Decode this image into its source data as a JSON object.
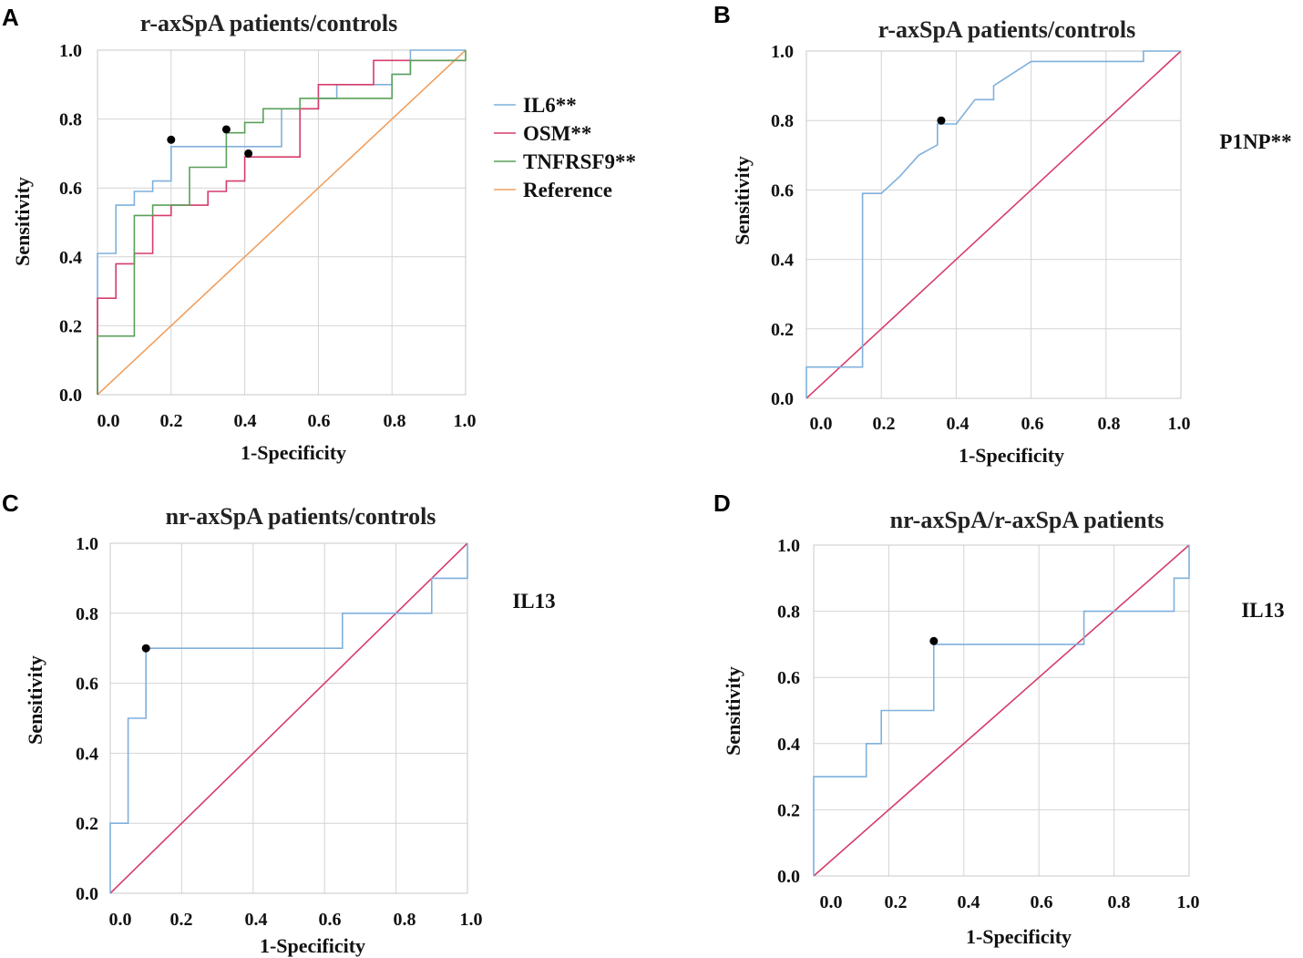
{
  "chart_data": [
    {
      "type": "line",
      "panel": "A",
      "title": "r-axSpA patients/controls",
      "xlabel": "1-Specificity",
      "ylabel": "Sensitivity",
      "xlim": [
        0,
        1
      ],
      "ylim": [
        0,
        1
      ],
      "xticks": [
        "0.0",
        "0.2",
        "0.4",
        "0.6",
        "0.8",
        "1.0"
      ],
      "yticks": [
        "0.0",
        "0.2",
        "0.4",
        "0.6",
        "0.8",
        "1.0"
      ],
      "legend": "right",
      "series": [
        {
          "name": "IL6**",
          "color": "#7fb0dc",
          "points": [
            [
              0,
              0
            ],
            [
              0,
              0.41
            ],
            [
              0.05,
              0.41
            ],
            [
              0.05,
              0.55
            ],
            [
              0.1,
              0.55
            ],
            [
              0.1,
              0.59
            ],
            [
              0.15,
              0.59
            ],
            [
              0.15,
              0.62
            ],
            [
              0.2,
              0.62
            ],
            [
              0.2,
              0.72
            ],
            [
              0.5,
              0.72
            ],
            [
              0.5,
              0.83
            ],
            [
              0.6,
              0.83
            ],
            [
              0.6,
              0.86
            ],
            [
              0.65,
              0.86
            ],
            [
              0.65,
              0.9
            ],
            [
              0.8,
              0.9
            ],
            [
              0.8,
              0.93
            ],
            [
              0.85,
              0.93
            ],
            [
              0.85,
              1
            ],
            [
              1,
              1
            ]
          ],
          "marker": [
            0.2,
            0.74
          ]
        },
        {
          "name": "OSM**",
          "color": "#d63d6a",
          "points": [
            [
              0,
              0
            ],
            [
              0,
              0.28
            ],
            [
              0.05,
              0.28
            ],
            [
              0.05,
              0.38
            ],
            [
              0.1,
              0.38
            ],
            [
              0.1,
              0.41
            ],
            [
              0.15,
              0.41
            ],
            [
              0.15,
              0.52
            ],
            [
              0.2,
              0.52
            ],
            [
              0.2,
              0.55
            ],
            [
              0.3,
              0.55
            ],
            [
              0.3,
              0.59
            ],
            [
              0.35,
              0.59
            ],
            [
              0.35,
              0.62
            ],
            [
              0.4,
              0.62
            ],
            [
              0.4,
              0.69
            ],
            [
              0.55,
              0.69
            ],
            [
              0.55,
              0.83
            ],
            [
              0.6,
              0.83
            ],
            [
              0.6,
              0.9
            ],
            [
              0.75,
              0.9
            ],
            [
              0.75,
              0.97
            ],
            [
              1,
              0.97
            ]
          ],
          "marker": [
            0.41,
            0.7
          ]
        },
        {
          "name": "TNFRSF9**",
          "color": "#5aa05a",
          "points": [
            [
              0,
              0
            ],
            [
              0,
              0.17
            ],
            [
              0.1,
              0.17
            ],
            [
              0.1,
              0.52
            ],
            [
              0.15,
              0.52
            ],
            [
              0.15,
              0.55
            ],
            [
              0.25,
              0.55
            ],
            [
              0.25,
              0.66
            ],
            [
              0.35,
              0.66
            ],
            [
              0.35,
              0.76
            ],
            [
              0.4,
              0.76
            ],
            [
              0.4,
              0.79
            ],
            [
              0.45,
              0.79
            ],
            [
              0.45,
              0.83
            ],
            [
              0.55,
              0.83
            ],
            [
              0.55,
              0.86
            ],
            [
              0.8,
              0.86
            ],
            [
              0.8,
              0.93
            ],
            [
              0.85,
              0.93
            ],
            [
              0.85,
              0.97
            ],
            [
              1,
              0.97
            ],
            [
              1,
              1
            ]
          ],
          "marker": [
            0.35,
            0.77
          ]
        },
        {
          "name": "Reference",
          "color": "#f0a060",
          "points": [
            [
              0,
              0
            ],
            [
              1,
              1
            ]
          ]
        }
      ]
    },
    {
      "type": "line",
      "panel": "B",
      "title": "r-axSpA patients/controls",
      "xlabel": "1-Specificity",
      "ylabel": "Sensitivity",
      "xlim": [
        0,
        1
      ],
      "ylim": [
        0,
        1
      ],
      "xticks": [
        "0.0",
        "0.2",
        "0.4",
        "0.6",
        "0.8",
        "1.0"
      ],
      "yticks": [
        "0.0",
        "0.2",
        "0.4",
        "0.6",
        "0.8",
        "1.0"
      ],
      "side_label": "P1NP**",
      "series": [
        {
          "name": "P1NP**",
          "color": "#7fb0dc",
          "points": [
            [
              0,
              0
            ],
            [
              0,
              0.09
            ],
            [
              0.15,
              0.09
            ],
            [
              0.15,
              0.59
            ],
            [
              0.2,
              0.59
            ],
            [
              0.25,
              0.64
            ],
            [
              0.3,
              0.7
            ],
            [
              0.35,
              0.73
            ],
            [
              0.35,
              0.79
            ],
            [
              0.4,
              0.79
            ],
            [
              0.45,
              0.86
            ],
            [
              0.5,
              0.86
            ],
            [
              0.5,
              0.9
            ],
            [
              0.6,
              0.97
            ],
            [
              0.9,
              0.97
            ],
            [
              0.9,
              1
            ],
            [
              1,
              1
            ]
          ],
          "marker": [
            0.36,
            0.8
          ]
        },
        {
          "name": "Reference",
          "color": "#d63d6a",
          "points": [
            [
              0,
              0
            ],
            [
              1,
              1
            ]
          ]
        }
      ]
    },
    {
      "type": "line",
      "panel": "C",
      "title": "nr-axSpA patients/controls",
      "xlabel": "1-Specificity",
      "ylabel": "Sensitivity",
      "xlim": [
        0,
        1
      ],
      "ylim": [
        0,
        1
      ],
      "xticks": [
        "0.0",
        "0.2",
        "0.4",
        "0.6",
        "0.8",
        "1.0"
      ],
      "yticks": [
        "0.0",
        "0.2",
        "0.4",
        "0.6",
        "0.8",
        "1.0"
      ],
      "side_label": "IL13",
      "series": [
        {
          "name": "IL13",
          "color": "#7fb0dc",
          "points": [
            [
              0,
              0
            ],
            [
              0,
              0.2
            ],
            [
              0.05,
              0.2
            ],
            [
              0.05,
              0.5
            ],
            [
              0.1,
              0.5
            ],
            [
              0.1,
              0.7
            ],
            [
              0.65,
              0.7
            ],
            [
              0.65,
              0.8
            ],
            [
              0.9,
              0.8
            ],
            [
              0.9,
              0.9
            ],
            [
              1,
              0.9
            ],
            [
              1,
              1
            ]
          ],
          "marker": [
            0.1,
            0.7
          ]
        },
        {
          "name": "Reference",
          "color": "#d63d6a",
          "points": [
            [
              0,
              0
            ],
            [
              1,
              1
            ]
          ]
        }
      ]
    },
    {
      "type": "line",
      "panel": "D",
      "title": "nr-axSpA/r-axSpA patients",
      "xlabel": "1-Specificity",
      "ylabel": "Sensitivity",
      "xlim": [
        0,
        1
      ],
      "ylim": [
        0,
        1
      ],
      "xticks": [
        "0.0",
        "0.2",
        "0.4",
        "0.6",
        "0.8",
        "1.0"
      ],
      "yticks": [
        "0.0",
        "0.2",
        "0.4",
        "0.6",
        "0.8",
        "1.0"
      ],
      "side_label": "IL13",
      "series": [
        {
          "name": "IL13",
          "color": "#7fb0dc",
          "points": [
            [
              0,
              0
            ],
            [
              0,
              0.3
            ],
            [
              0.14,
              0.3
            ],
            [
              0.14,
              0.4
            ],
            [
              0.18,
              0.4
            ],
            [
              0.18,
              0.5
            ],
            [
              0.32,
              0.5
            ],
            [
              0.32,
              0.7
            ],
            [
              0.72,
              0.7
            ],
            [
              0.72,
              0.8
            ],
            [
              0.96,
              0.8
            ],
            [
              0.96,
              0.9
            ],
            [
              1,
              0.9
            ],
            [
              1,
              1
            ]
          ],
          "marker": [
            0.32,
            0.71
          ]
        },
        {
          "name": "Reference",
          "color": "#d63d6a",
          "points": [
            [
              0,
              0
            ],
            [
              1,
              1
            ]
          ]
        }
      ]
    }
  ]
}
